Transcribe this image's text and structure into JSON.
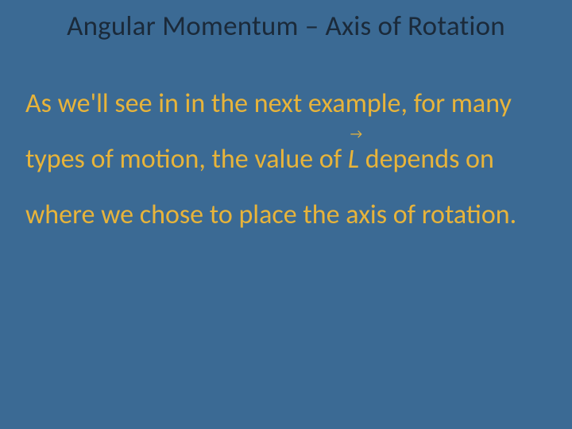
{
  "slide": {
    "title": "Angular Momentum – Axis of Rotation",
    "body_pre": "As we'll see in in the next example, for many types of motion, the value of ",
    "vector_symbol": "L",
    "vector_arrow": "→",
    "body_post": " depends on where we chose to place the axis of rotation.",
    "background_color": "#3b6a94",
    "title_color": "#1b2a3a",
    "body_color": "#e8b43a",
    "title_fontsize": 35,
    "body_fontsize": 34,
    "body_lineheight": 2.06
  }
}
